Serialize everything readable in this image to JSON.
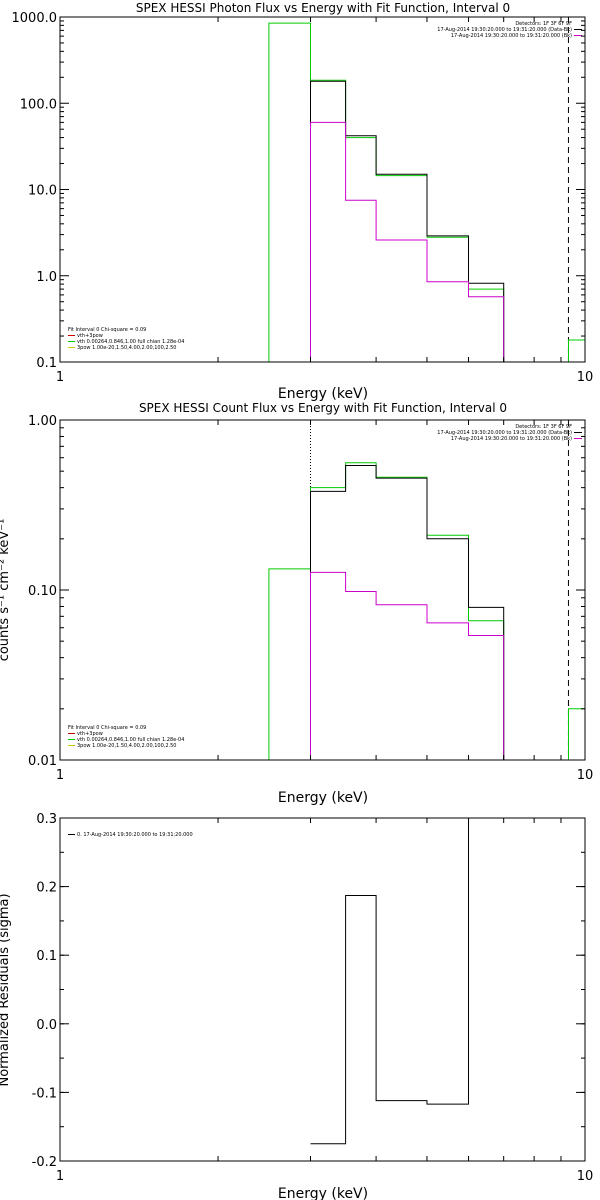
{
  "chart_data": [
    {
      "type": "line",
      "title": "SPEX HESSI Photon Flux vs Energy with Fit Function, Interval 0",
      "xlabel": "Energy (keV)",
      "ylabel": "",
      "xscale": "log",
      "yscale": "log",
      "xlim": [
        1,
        10
      ],
      "ylim": [
        0.1,
        1000
      ],
      "xticks": [
        {
          "value": 1,
          "label": "1"
        },
        {
          "value": 10,
          "label": "10"
        }
      ],
      "yticks": [
        {
          "value": 0.1,
          "label": "0.1"
        },
        {
          "value": 1,
          "label": "1.0"
        },
        {
          "value": 10,
          "label": "10.0"
        },
        {
          "value": 100,
          "label": "100.0"
        },
        {
          "value": 1000,
          "label": "1000.0"
        }
      ],
      "vlines": [
        {
          "x": 3.0,
          "style": "dotted"
        },
        {
          "x": 9.3,
          "style": "dashed"
        }
      ],
      "series": [
        {
          "color": "#00cc00",
          "steps": [
            {
              "x0": 2.5,
              "x1": 3.0,
              "y": 850
            },
            {
              "x0": 3.0,
              "x1": 3.5,
              "y": 185
            },
            {
              "x0": 3.5,
              "x1": 4.0,
              "y": 40
            },
            {
              "x0": 4.0,
              "x1": 5.0,
              "y": 14.5
            },
            {
              "x0": 5.0,
              "x1": 6.0,
              "y": 2.8
            },
            {
              "x0": 6.0,
              "x1": 7.0,
              "y": 0.7
            },
            {
              "x0": 9.3,
              "x1": 10.0,
              "y": 0.18
            }
          ]
        },
        {
          "color": "#000000",
          "steps": [
            {
              "x0": 3.0,
              "x1": 3.5,
              "y": 180
            },
            {
              "x0": 3.5,
              "x1": 4.0,
              "y": 42
            },
            {
              "x0": 4.0,
              "x1": 5.0,
              "y": 15
            },
            {
              "x0": 5.0,
              "x1": 6.0,
              "y": 2.9
            },
            {
              "x0": 6.0,
              "x1": 7.0,
              "y": 0.82
            }
          ]
        },
        {
          "color": "#cc00cc",
          "steps": [
            {
              "x0": 3.0,
              "x1": 3.5,
              "y": 60
            },
            {
              "x0": 3.5,
              "x1": 4.0,
              "y": 7.5
            },
            {
              "x0": 4.0,
              "x1": 5.0,
              "y": 2.6
            },
            {
              "x0": 5.0,
              "x1": 6.0,
              "y": 0.85
            },
            {
              "x0": 6.0,
              "x1": 7.0,
              "y": 0.57
            }
          ]
        }
      ],
      "annotations_right": [
        {
          "text": "Detectors: 1F 3F 6F 9F",
          "color": "#000000"
        },
        {
          "text": "17-Aug-2014 19:30:20.000 to 19:31:20.000 (Data-Bk)",
          "color": "#000000"
        },
        {
          "text": "17-Aug-2014 19:30:20.000 to 19:31:20.000 (Bk)",
          "color": "#cc00cc"
        }
      ],
      "legend": [
        {
          "text": "Fit Interval 0   Chi-square = 0.09",
          "color": null
        },
        {
          "text": "vth+3pow",
          "color": "#cc0000"
        },
        {
          "text": "vth 0.00264,0.846,1.00  full chian 1.28e-04",
          "color": "#00cc00"
        },
        {
          "text": "3pow 1.00e-20,1.50,4.00,2.00,100,2.50",
          "color": "#cccc00"
        }
      ]
    },
    {
      "type": "line",
      "title": "SPEX HESSI Count Flux vs Energy with Fit Function, Interval 0",
      "xlabel": "Energy (keV)",
      "ylabel": "counts s⁻¹ cm⁻² keV⁻¹",
      "xscale": "log",
      "yscale": "log",
      "xlim": [
        1,
        10
      ],
      "ylim": [
        0.01,
        1
      ],
      "xticks": [
        {
          "value": 1,
          "label": "1"
        },
        {
          "value": 10,
          "label": "10"
        }
      ],
      "yticks": [
        {
          "value": 0.01,
          "label": "0.01"
        },
        {
          "value": 0.1,
          "label": "0.10"
        },
        {
          "value": 1,
          "label": "1.00"
        }
      ],
      "vlines": [
        {
          "x": 3.0,
          "style": "dotted"
        },
        {
          "x": 9.3,
          "style": "dashed"
        }
      ],
      "series": [
        {
          "color": "#00cc00",
          "steps": [
            {
              "x0": 2.5,
              "x1": 3.0,
              "y": 0.133
            },
            {
              "x0": 3.0,
              "x1": 3.5,
              "y": 0.4
            },
            {
              "x0": 3.5,
              "x1": 4.0,
              "y": 0.56
            },
            {
              "x0": 4.0,
              "x1": 5.0,
              "y": 0.46
            },
            {
              "x0": 5.0,
              "x1": 6.0,
              "y": 0.21
            },
            {
              "x0": 6.0,
              "x1": 7.0,
              "y": 0.066
            },
            {
              "x0": 9.3,
              "x1": 10.0,
              "y": 0.02
            }
          ]
        },
        {
          "color": "#000000",
          "steps": [
            {
              "x0": 3.0,
              "x1": 3.5,
              "y": 0.38
            },
            {
              "x0": 3.5,
              "x1": 4.0,
              "y": 0.54
            },
            {
              "x0": 4.0,
              "x1": 5.0,
              "y": 0.455
            },
            {
              "x0": 5.0,
              "x1": 6.0,
              "y": 0.2
            },
            {
              "x0": 6.0,
              "x1": 7.0,
              "y": 0.079
            }
          ]
        },
        {
          "color": "#cc00cc",
          "steps": [
            {
              "x0": 3.0,
              "x1": 3.5,
              "y": 0.127
            },
            {
              "x0": 3.5,
              "x1": 4.0,
              "y": 0.098
            },
            {
              "x0": 4.0,
              "x1": 5.0,
              "y": 0.082
            },
            {
              "x0": 5.0,
              "x1": 6.0,
              "y": 0.064
            },
            {
              "x0": 6.0,
              "x1": 7.0,
              "y": 0.054
            }
          ]
        }
      ],
      "annotations_right": [
        {
          "text": "Detectors: 1F 3F 6F 9F",
          "color": "#000000"
        },
        {
          "text": "17-Aug-2014 19:30:20.000 to 19:31:20.000 (Data-Bk)",
          "color": "#000000"
        },
        {
          "text": "17-Aug-2014 19:30:20.000 to 19:31:20.000 (Bk)",
          "color": "#cc00cc"
        }
      ],
      "legend": [
        {
          "text": "Fit Interval 0   Chi-square = 0.09",
          "color": null
        },
        {
          "text": "vth+3pow",
          "color": "#cc0000"
        },
        {
          "text": "vth 0.00264,0.846,1.00  full chian 1.28e-04",
          "color": "#00cc00"
        },
        {
          "text": "3pow 1.00e-20,1.50,4.00,2.00,100,2.50",
          "color": "#cccc00"
        }
      ]
    },
    {
      "type": "line",
      "title": "",
      "xlabel": "Energy (keV)",
      "ylabel": "Normalized Residuals (sigma)",
      "xscale": "log",
      "yscale": "linear",
      "xlim": [
        1,
        10
      ],
      "ylim": [
        -0.2,
        0.3
      ],
      "xticks": [
        {
          "value": 1,
          "label": "1"
        },
        {
          "value": 10,
          "label": "10"
        }
      ],
      "yticks": [
        {
          "value": -0.2,
          "label": "-0.2"
        },
        {
          "value": -0.1,
          "label": "-0.1"
        },
        {
          "value": 0.0,
          "label": "0.0"
        },
        {
          "value": 0.1,
          "label": "0.1"
        },
        {
          "value": 0.2,
          "label": "0.2"
        },
        {
          "value": 0.3,
          "label": "0.3"
        }
      ],
      "vlines": [],
      "series": [
        {
          "color": "#000000",
          "steps": [
            {
              "x0": 3.0,
              "x1": 3.5,
              "y": -0.175
            },
            {
              "x0": 3.5,
              "x1": 4.0,
              "y": 0.187
            },
            {
              "x0": 4.0,
              "x1": 5.0,
              "y": -0.112
            },
            {
              "x0": 5.0,
              "x1": 6.0,
              "y": -0.117
            },
            {
              "x0": 6.0,
              "x1": 7.0,
              "y": 0.3
            }
          ]
        }
      ],
      "annotations_right": [],
      "legend": [
        {
          "text": "0. 17-Aug-2014 19:30:20.000 to 19:31:20.000",
          "color": "#000000"
        }
      ]
    }
  ]
}
